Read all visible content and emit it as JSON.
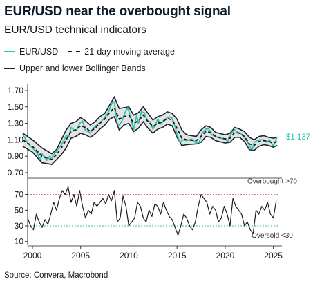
{
  "title": "EUR/USD near the overbought signal",
  "subtitle": "EUR/USD technical indicators",
  "legend": {
    "eurusd": "EUR/USD",
    "ma": "21-day moving average",
    "bands": "Upper and lower Bollinger Bands"
  },
  "source": "Source: Convera, Macrobond",
  "colors": {
    "eurusd": "#2fc2b0",
    "ma": "#1a1a1a",
    "bands": "#1a2230",
    "band_fill": "#e3e3e3",
    "rsi": "#1a1a1a",
    "overbought": "#e06666",
    "oversold": "#2fc2b0"
  },
  "chart_data": [
    {
      "type": "area",
      "ylim": [
        0.7,
        1.75
      ],
      "yticks": [
        "0.70",
        "0.90",
        "1.10",
        "1.30",
        "1.50",
        "1.70"
      ],
      "last_value_label": "$1.137",
      "series": [
        {
          "name": "EUR/USD",
          "x": [
            1999.0,
            1999.5,
            2000.0,
            2000.5,
            2000.8,
            2001.0,
            2001.3,
            2001.5,
            2001.8,
            2002.0,
            2002.3,
            2002.6,
            2002.9,
            2003.2,
            2003.5,
            2003.8,
            2004.0,
            2004.3,
            2004.6,
            2004.9,
            2005.2,
            2005.5,
            2005.8,
            2006.0,
            2006.3,
            2006.6,
            2006.9,
            2007.2,
            2007.5,
            2007.8,
            2008.0,
            2008.3,
            2008.5,
            2008.8,
            2009.0,
            2009.3,
            2009.6,
            2009.9,
            2010.2,
            2010.5,
            2010.8,
            2011.0,
            2011.3,
            2011.6,
            2011.9,
            2012.2,
            2012.5,
            2012.8,
            2013.0,
            2013.3,
            2013.6,
            2013.9,
            2014.2,
            2014.5,
            2014.8,
            2015.0,
            2015.3,
            2015.6,
            2016.0,
            2016.5,
            2017.0,
            2017.3,
            2017.6,
            2018.0,
            2018.3,
            2018.6,
            2019.0,
            2019.5,
            2020.0,
            2020.3,
            2020.6,
            2021.0,
            2021.3,
            2021.6,
            2022.0,
            2022.3,
            2022.6,
            2022.8,
            2023.0,
            2023.3,
            2023.6,
            2024.0,
            2024.3,
            2024.6,
            2024.9,
            2025.0,
            2025.2,
            2025.4
          ],
          "values": [
            1.17,
            1.06,
            1.0,
            0.94,
            0.86,
            0.93,
            0.88,
            0.85,
            0.9,
            0.88,
            0.93,
            0.98,
            1.02,
            1.08,
            1.15,
            1.14,
            1.25,
            1.22,
            1.22,
            1.3,
            1.33,
            1.21,
            1.2,
            1.18,
            1.24,
            1.27,
            1.3,
            1.33,
            1.37,
            1.42,
            1.47,
            1.56,
            1.56,
            1.3,
            1.28,
            1.33,
            1.43,
            1.49,
            1.37,
            1.22,
            1.39,
            1.3,
            1.44,
            1.43,
            1.33,
            1.32,
            1.23,
            1.29,
            1.35,
            1.29,
            1.33,
            1.36,
            1.38,
            1.36,
            1.26,
            1.16,
            1.07,
            1.1,
            1.09,
            1.11,
            1.06,
            1.07,
            1.18,
            1.23,
            1.23,
            1.16,
            1.14,
            1.12,
            1.11,
            1.08,
            1.17,
            1.22,
            1.19,
            1.18,
            1.13,
            1.08,
            1.01,
            0.98,
            1.07,
            1.09,
            1.1,
            1.1,
            1.07,
            1.1,
            1.04,
            1.03,
            1.08,
            1.137
          ]
        },
        {
          "name": "21-day moving average",
          "x": [
            1999.0,
            2000.0,
            2001.0,
            2002.0,
            2002.5,
            2003.0,
            2003.5,
            2004.0,
            2004.5,
            2005.0,
            2005.5,
            2006.0,
            2006.5,
            2007.0,
            2007.5,
            2008.0,
            2008.5,
            2009.0,
            2009.5,
            2010.0,
            2010.5,
            2011.0,
            2011.5,
            2012.0,
            2012.5,
            2013.0,
            2013.5,
            2014.0,
            2014.5,
            2015.0,
            2015.5,
            2016.0,
            2017.0,
            2017.5,
            2018.0,
            2018.5,
            2019.0,
            2020.0,
            2020.5,
            2021.0,
            2021.5,
            2022.0,
            2022.5,
            2023.0,
            2023.5,
            2024.0,
            2024.5,
            2025.0,
            2025.4
          ],
          "values": [
            1.1,
            1.02,
            0.9,
            0.86,
            0.92,
            1.0,
            1.1,
            1.2,
            1.22,
            1.27,
            1.25,
            1.2,
            1.24,
            1.3,
            1.35,
            1.43,
            1.49,
            1.35,
            1.38,
            1.4,
            1.3,
            1.33,
            1.4,
            1.32,
            1.26,
            1.3,
            1.32,
            1.36,
            1.34,
            1.24,
            1.12,
            1.1,
            1.09,
            1.14,
            1.2,
            1.19,
            1.14,
            1.11,
            1.12,
            1.19,
            1.18,
            1.14,
            1.05,
            1.03,
            1.08,
            1.09,
            1.08,
            1.06,
            1.08
          ]
        },
        {
          "name": "Upper Bollinger Band",
          "x": [
            1999.0,
            2000.0,
            2001.0,
            2002.0,
            2002.5,
            2003.0,
            2003.5,
            2004.0,
            2004.5,
            2005.0,
            2005.5,
            2006.0,
            2006.5,
            2007.0,
            2007.5,
            2008.0,
            2008.5,
            2009.0,
            2009.5,
            2010.0,
            2010.5,
            2011.0,
            2011.5,
            2012.0,
            2012.5,
            2013.0,
            2013.5,
            2014.0,
            2014.5,
            2015.0,
            2015.5,
            2016.0,
            2017.0,
            2017.5,
            2018.0,
            2018.5,
            2019.0,
            2020.0,
            2020.5,
            2021.0,
            2021.5,
            2022.0,
            2022.5,
            2023.0,
            2023.5,
            2024.0,
            2024.5,
            2025.0,
            2025.4
          ],
          "values": [
            1.18,
            1.1,
            1.0,
            0.93,
            0.98,
            1.1,
            1.22,
            1.3,
            1.32,
            1.37,
            1.33,
            1.28,
            1.32,
            1.38,
            1.42,
            1.52,
            1.62,
            1.48,
            1.49,
            1.5,
            1.4,
            1.43,
            1.5,
            1.42,
            1.34,
            1.38,
            1.4,
            1.44,
            1.42,
            1.35,
            1.22,
            1.16,
            1.14,
            1.22,
            1.27,
            1.25,
            1.19,
            1.16,
            1.18,
            1.25,
            1.23,
            1.2,
            1.13,
            1.1,
            1.14,
            1.15,
            1.13,
            1.12,
            1.13
          ]
        },
        {
          "name": "Lower Bollinger Band",
          "x": [
            1999.0,
            2000.0,
            2001.0,
            2002.0,
            2002.5,
            2003.0,
            2003.5,
            2004.0,
            2004.5,
            2005.0,
            2005.5,
            2006.0,
            2006.5,
            2007.0,
            2007.5,
            2008.0,
            2008.5,
            2009.0,
            2009.5,
            2010.0,
            2010.5,
            2011.0,
            2011.5,
            2012.0,
            2012.5,
            2013.0,
            2013.5,
            2014.0,
            2014.5,
            2015.0,
            2015.5,
            2016.0,
            2017.0,
            2017.5,
            2018.0,
            2018.5,
            2019.0,
            2020.0,
            2020.5,
            2021.0,
            2021.5,
            2022.0,
            2022.5,
            2023.0,
            2023.5,
            2024.0,
            2024.5,
            2025.0,
            2025.4
          ],
          "values": [
            1.02,
            0.95,
            0.82,
            0.8,
            0.86,
            0.92,
            1.0,
            1.12,
            1.14,
            1.18,
            1.16,
            1.13,
            1.17,
            1.23,
            1.28,
            1.35,
            1.38,
            1.22,
            1.28,
            1.3,
            1.2,
            1.24,
            1.32,
            1.24,
            1.18,
            1.23,
            1.25,
            1.29,
            1.27,
            1.13,
            1.03,
            1.04,
            1.05,
            1.07,
            1.14,
            1.13,
            1.09,
            1.06,
            1.07,
            1.13,
            1.13,
            1.08,
            0.98,
            0.97,
            1.02,
            1.04,
            1.03,
            1.01,
            1.03
          ]
        }
      ]
    },
    {
      "type": "line",
      "ylim": [
        8,
        82
      ],
      "yticks": [
        "10",
        "30",
        "50",
        "70"
      ],
      "xlim": [
        1999.5,
        2025.6
      ],
      "xticks": [
        "2000",
        "2005",
        "2010",
        "2015",
        "2020",
        "2025"
      ],
      "overbought": 70,
      "oversold": 30,
      "overbought_label": "Overbought >70",
      "oversold_label": "Oversold <30",
      "series": [
        {
          "name": "RSI",
          "x": [
            1999.5,
            1999.8,
            2000.1,
            2000.4,
            2000.7,
            2001.0,
            2001.3,
            2001.6,
            2001.9,
            2002.2,
            2002.5,
            2002.8,
            2003.1,
            2003.4,
            2003.7,
            2004.0,
            2004.3,
            2004.6,
            2004.9,
            2005.2,
            2005.5,
            2005.8,
            2006.1,
            2006.4,
            2006.7,
            2007.0,
            2007.3,
            2007.6,
            2007.9,
            2008.2,
            2008.5,
            2008.8,
            2009.1,
            2009.4,
            2009.7,
            2010.0,
            2010.3,
            2010.6,
            2010.9,
            2011.2,
            2011.5,
            2011.8,
            2012.1,
            2012.4,
            2012.7,
            2013.0,
            2013.3,
            2013.6,
            2013.9,
            2014.2,
            2014.5,
            2014.8,
            2015.1,
            2015.4,
            2015.7,
            2016.0,
            2016.3,
            2016.6,
            2016.9,
            2017.2,
            2017.5,
            2017.8,
            2018.1,
            2018.4,
            2018.7,
            2019.0,
            2019.3,
            2019.6,
            2019.9,
            2020.2,
            2020.5,
            2020.8,
            2021.1,
            2021.4,
            2021.7,
            2022.0,
            2022.3,
            2022.6,
            2022.9,
            2023.2,
            2023.5,
            2023.8,
            2024.1,
            2024.4,
            2024.7,
            2025.0,
            2025.3
          ],
          "values": [
            40,
            30,
            25,
            45,
            35,
            28,
            38,
            32,
            45,
            60,
            50,
            65,
            75,
            70,
            80,
            60,
            70,
            55,
            75,
            55,
            40,
            50,
            45,
            60,
            55,
            60,
            65,
            58,
            70,
            62,
            75,
            35,
            40,
            68,
            55,
            30,
            35,
            40,
            60,
            55,
            40,
            35,
            50,
            42,
            58,
            55,
            45,
            60,
            50,
            42,
            38,
            28,
            18,
            30,
            45,
            40,
            30,
            25,
            35,
            55,
            70,
            65,
            60,
            45,
            55,
            50,
            35,
            40,
            55,
            45,
            30,
            65,
            55,
            50,
            45,
            30,
            35,
            25,
            20,
            50,
            45,
            55,
            50,
            60,
            45,
            40,
            62
          ]
        }
      ]
    }
  ]
}
